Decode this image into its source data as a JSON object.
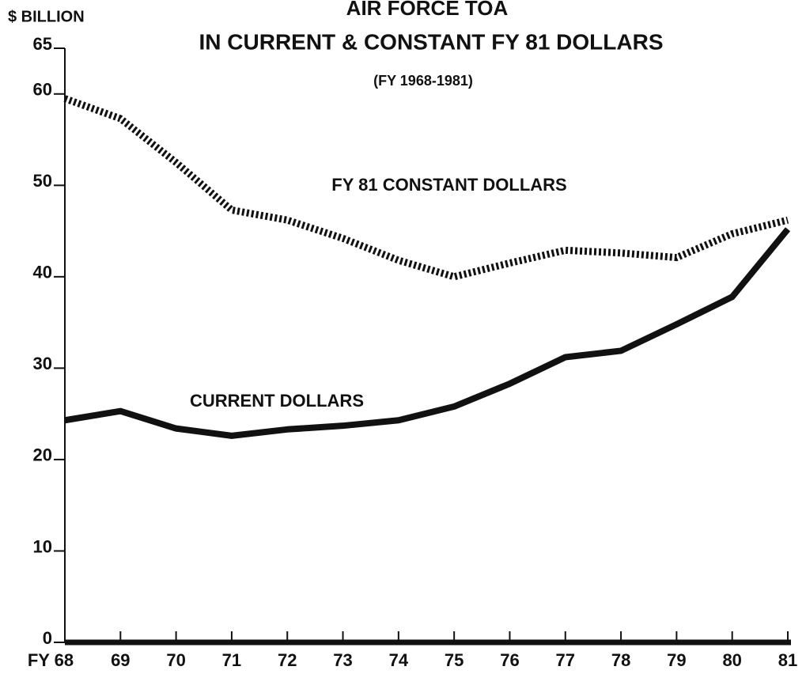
{
  "chart_data": {
    "type": "line",
    "title": [
      "AIR FORCE TOA",
      "IN CURRENT & CONSTANT FY 81 DOLLARS"
    ],
    "subtitle": "(FY 1968-1981)",
    "y_label": "$ BILLION",
    "categories": [
      "FY 68",
      "69",
      "70",
      "71",
      "72",
      "73",
      "74",
      "75",
      "76",
      "77",
      "78",
      "79",
      "80",
      "81"
    ],
    "series": [
      {
        "name": "FY 81 CONSTANT DOLLARS",
        "color": "#111111",
        "linestyle": "dotted",
        "values": [
          59.5,
          57.3,
          52.5,
          47.3,
          46.2,
          44.2,
          41.8,
          40.0,
          41.5,
          42.9,
          42.6,
          42.1,
          44.7,
          46.2
        ]
      },
      {
        "name": "CURRENT DOLLARS",
        "color": "#111111",
        "linestyle": "solid",
        "values": [
          24.3,
          25.3,
          23.4,
          22.6,
          23.3,
          23.7,
          24.3,
          25.8,
          28.3,
          31.2,
          31.9,
          34.8,
          37.8,
          45.2
        ]
      }
    ],
    "ylim": [
      0,
      65
    ],
    "yticks": [
      0,
      10,
      20,
      30,
      40,
      50,
      60,
      65
    ]
  }
}
